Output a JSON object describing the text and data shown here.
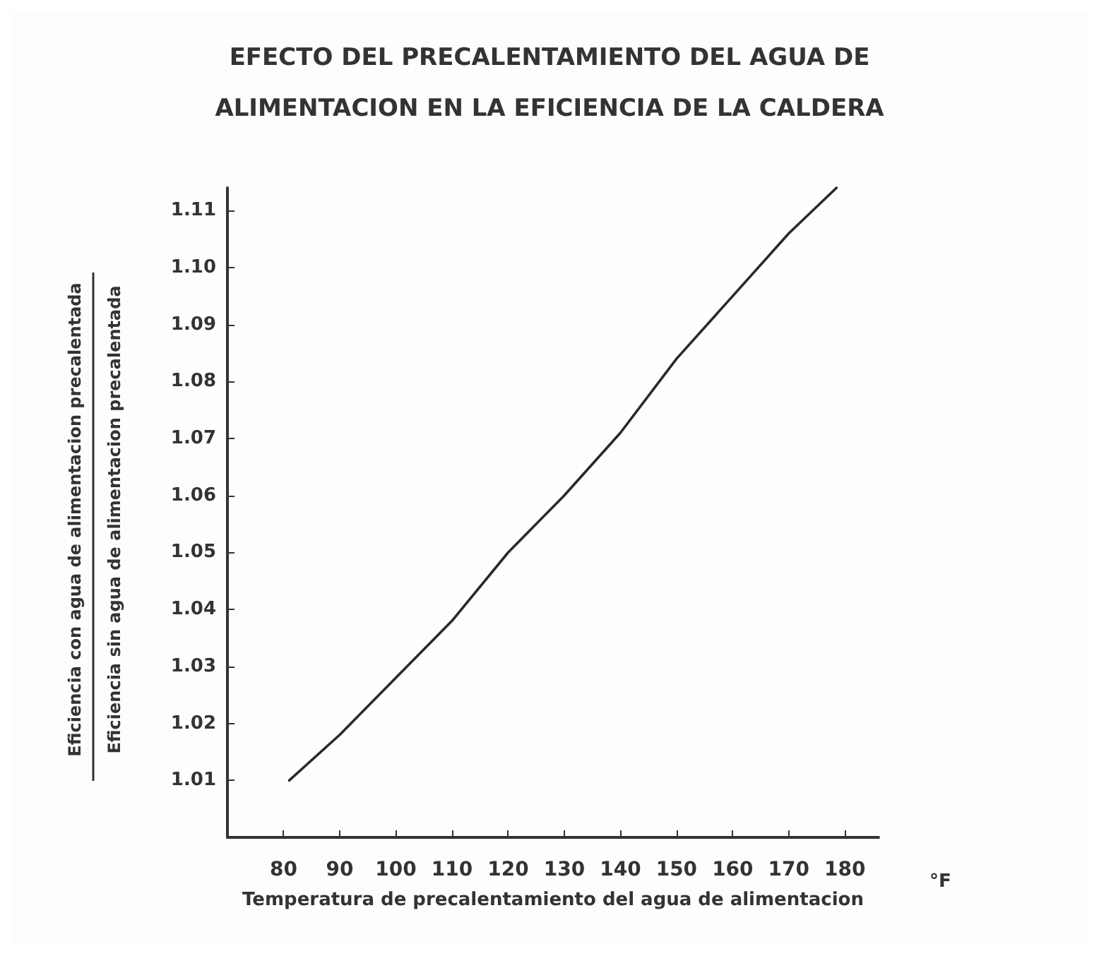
{
  "chart_data": {
    "type": "line",
    "title": "EFECTO DEL PRECALENTAMIENTO DEL AGUA DE\nALIMENTACION EN LA EFICIENCIA DE LA CALDERA",
    "xlabel": "Temperatura de precalentamiento del agua de alimentacion",
    "ylabel": "Eficiencia con agua de alimentacion precalentada\nEficiencia sin agua de alimentacion precalentada",
    "annotations": [
      "°F"
    ],
    "x": [
      81,
      90,
      100,
      110,
      120,
      130,
      140,
      150,
      160,
      170,
      178.5
    ],
    "series": [
      {
        "color": "#2a2a2a",
        "values": [
          1.01,
          1.018,
          1.028,
          1.038,
          1.05,
          1.06,
          1.071,
          1.084,
          1.095,
          1.106,
          1.114
        ]
      }
    ],
    "xlim": [
      70,
      186
    ],
    "xticks": [
      80,
      90,
      100,
      110,
      120,
      130,
      140,
      150,
      160,
      170,
      180
    ],
    "ylim": [
      1.0,
      1.114
    ],
    "yticks": [
      1.01,
      1.02,
      1.03,
      1.04,
      1.05,
      1.06,
      1.07,
      1.08,
      1.09,
      {
        "value": 1.1,
        "label": "1.10"
      },
      1.11
    ],
    "grid": false,
    "marker": "none",
    "line_style": "solid"
  }
}
